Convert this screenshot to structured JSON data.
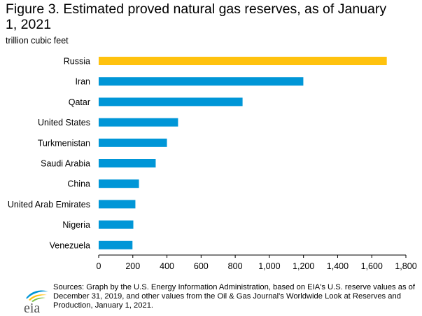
{
  "chart_data": {
    "type": "bar",
    "orientation": "horizontal",
    "title": "Figure 3. Estimated proved natural gas reserves, as of January 1, 2021",
    "unit_label": "trillion cubic feet",
    "categories": [
      "Russia",
      "Iran",
      "Qatar",
      "United States",
      "Turkmenistan",
      "Saudi Arabia",
      "China",
      "United Arab Emirates",
      "Nigeria",
      "Venezuela"
    ],
    "values": [
      1688,
      1199,
      843,
      465,
      400,
      334,
      236,
      215,
      203,
      198
    ],
    "highlight_category": "Russia",
    "xlim": [
      0,
      1800
    ],
    "xticks": [
      0,
      200,
      400,
      600,
      800,
      1000,
      1200,
      1400,
      1600,
      1800
    ],
    "xtick_labels": [
      "0",
      "200",
      "400",
      "600",
      "800",
      "1,000",
      "1,200",
      "1,400",
      "1,600",
      "1,800"
    ],
    "grid": false,
    "legend": "none"
  },
  "colors": {
    "bar": "#0096d7",
    "highlight": "#ffc20e",
    "axis": "#000000"
  },
  "logo": {
    "text": "eia"
  },
  "source": "Sources: Graph by the U.S. Energy Information Administration, based on EIA's U.S. reserve values as of December 31, 2019, and other values from the Oil & Gas Journal's Worldwide Look at Reserves and Production, January 1, 2021."
}
